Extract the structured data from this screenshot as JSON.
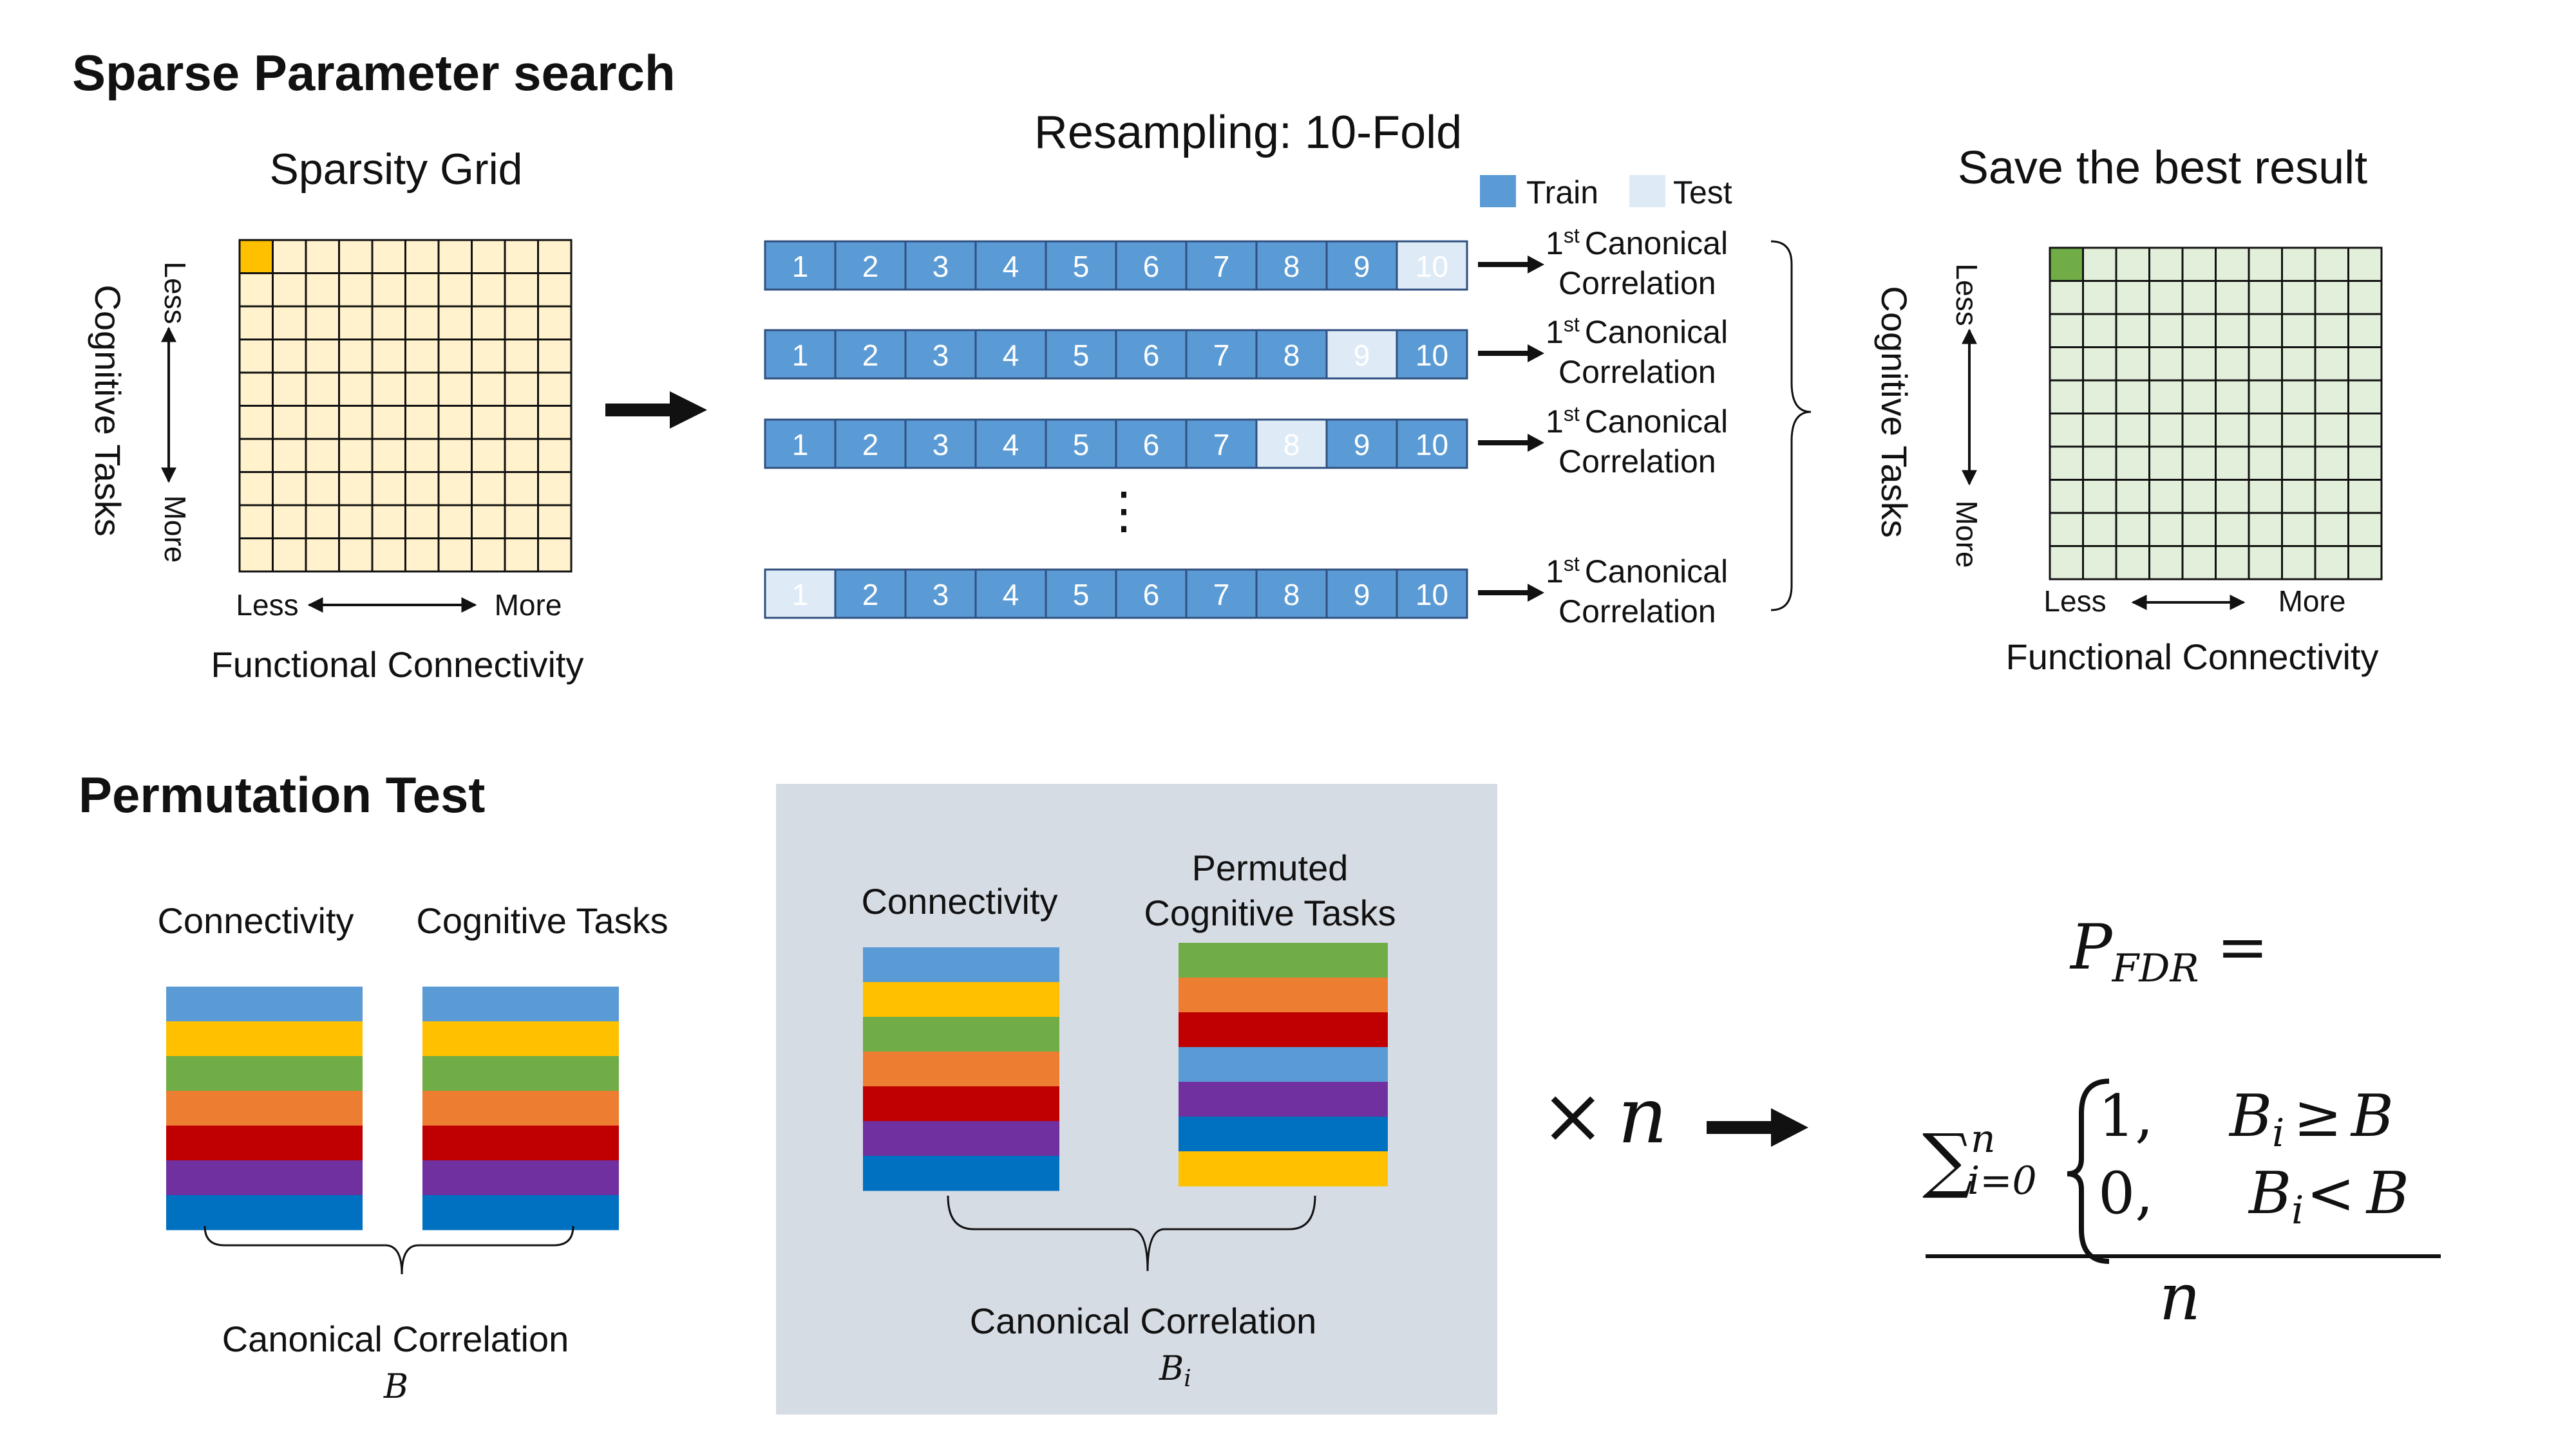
{
  "top": {
    "section_title": "Sparse Parameter search",
    "grid_title": "Sparsity Grid",
    "resampling_title": "Resampling: 10-Fold",
    "save_title": "Save the best result",
    "legend": {
      "train": "Train",
      "test": "Test"
    },
    "axis": {
      "y_label": "Cognitive Tasks",
      "y_less": "Less",
      "y_more": "More",
      "x_less": "Less",
      "x_more": "More",
      "x_label": "Functional Connectivity"
    },
    "fold_numbers": [
      "1",
      "2",
      "3",
      "4",
      "5",
      "6",
      "7",
      "8",
      "9",
      "10"
    ],
    "fold_rows_test_index": [
      10,
      9,
      8,
      1
    ],
    "ellipsis": "⋮",
    "result": {
      "sup": "st",
      "prefix": "1",
      "line1": "Canonical",
      "line2": "Correlation"
    }
  },
  "bottom": {
    "section_title": "Permutation Test",
    "connectivity": "Connectivity",
    "cognitive_tasks": "Cognitive Tasks",
    "canonical_correlation": "Canonical Correlation",
    "b": "B",
    "permuted_line1": "Permuted",
    "permuted_line2": "Cognitive Tasks",
    "bi_base": "B",
    "bi_sub": "i",
    "times": "×",
    "n": "n",
    "formula": {
      "p": "P",
      "p_sub": "FDR",
      "equals": "=",
      "sum": "∑",
      "sum_sub": "i=0",
      "sum_sup": "n",
      "case1_val": "1,",
      "case2_val": "0,",
      "ge": "≥",
      "lt": "<",
      "denominator": "n"
    }
  },
  "colors": {
    "fold_blue": "#5b9bd5",
    "fold_test": "#deebf7",
    "fold_border": "#2f4f7f",
    "grid_fill": "#fff2cc",
    "grid_highlight": "#ffc000",
    "best_fill": "#e2efda",
    "best_highlight": "#70ad47",
    "panel_bg": "#d6dce4",
    "stripes_orig": [
      "#5b9bd5",
      "#ffc000",
      "#70ad47",
      "#ed7d31",
      "#c00000",
      "#7030a0",
      "#0070c0"
    ],
    "stripes_perm": [
      "#70ad47",
      "#ed7d31",
      "#c00000",
      "#5b9bd5",
      "#7030a0",
      "#0070c0",
      "#ffc000"
    ]
  }
}
